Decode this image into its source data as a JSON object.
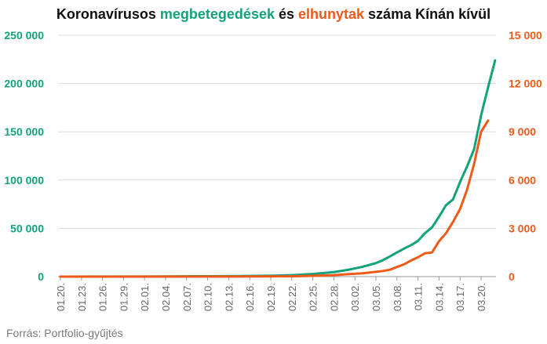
{
  "header": {
    "title_part1": "Koronavírusos ",
    "title_cases": "megbetegedések",
    "title_part2": " és ",
    "title_deaths": "elhunytak",
    "title_part3": " száma Kínán kívül"
  },
  "footer": {
    "source": "Forrás: Portfolio-gyűjtés"
  },
  "colors": {
    "cases": "#12a37a",
    "deaths": "#f05a19",
    "axis_text": "#666666",
    "grid": "#dcdcdc"
  },
  "chart_data": {
    "type": "line",
    "title": "Koronavírusos megbetegedések és elhunytak száma Kínán kívül",
    "x_ticks": [
      "01.20.",
      "01.23.",
      "01.26.",
      "01.29.",
      "02.01.",
      "02.04.",
      "02.07.",
      "02.10.",
      "02.13.",
      "02.16.",
      "02.19.",
      "02.22.",
      "02.25.",
      "02.28.",
      "03.02.",
      "03.05.",
      "03.08.",
      "03.11.",
      "03.14.",
      "03.17.",
      "03.20."
    ],
    "x_start": "2020-01-20",
    "x_end": "2020-03-21",
    "y_left": {
      "range": [
        0,
        250000
      ],
      "ticks": [
        0,
        50000,
        100000,
        150000,
        200000,
        250000
      ],
      "tick_labels": [
        "0",
        "50 000",
        "100 000",
        "150 000",
        "200 000",
        "250 000"
      ],
      "color": "#12a37a"
    },
    "y_right": {
      "range": [
        0,
        15000
      ],
      "ticks": [
        0,
        3000,
        6000,
        9000,
        12000,
        15000
      ],
      "tick_labels": [
        "0",
        "3 000",
        "6 000",
        "9 000",
        "12 000",
        "15 000"
      ],
      "color": "#f05a19"
    },
    "grid": true,
    "series": [
      {
        "axis": "left",
        "color": "#12a37a",
        "points": [
          [
            "2020-01-20",
            0
          ],
          [
            "2020-02-01",
            150
          ],
          [
            "2020-02-13",
            500
          ],
          [
            "2020-02-16",
            700
          ],
          [
            "2020-02-19",
            900
          ],
          [
            "2020-02-22",
            1500
          ],
          [
            "2020-02-25",
            2700
          ],
          [
            "2020-02-28",
            4700
          ],
          [
            "2020-03-01",
            7000
          ],
          [
            "2020-03-03",
            10000
          ],
          [
            "2020-03-05",
            14000
          ],
          [
            "2020-03-06",
            17000
          ],
          [
            "2020-03-07",
            21000
          ],
          [
            "2020-03-08",
            25000
          ],
          [
            "2020-03-09",
            29000
          ],
          [
            "2020-03-10",
            32500
          ],
          [
            "2020-03-11",
            37000
          ],
          [
            "2020-03-12",
            45000
          ],
          [
            "2020-03-13",
            51000
          ],
          [
            "2020-03-14",
            62000
          ],
          [
            "2020-03-15",
            74000
          ],
          [
            "2020-03-16",
            80000
          ],
          [
            "2020-03-17",
            98000
          ],
          [
            "2020-03-18",
            114000
          ],
          [
            "2020-03-19",
            132000
          ],
          [
            "2020-03-20",
            167000
          ],
          [
            "2020-03-21",
            196000
          ],
          [
            "2020-03-22",
            224000
          ]
        ]
      },
      {
        "axis": "right",
        "color": "#f05a19",
        "points": [
          [
            "2020-01-20",
            0
          ],
          [
            "2020-02-14",
            5
          ],
          [
            "2020-02-22",
            20
          ],
          [
            "2020-02-25",
            50
          ],
          [
            "2020-02-28",
            90
          ],
          [
            "2020-03-01",
            150
          ],
          [
            "2020-03-03",
            200
          ],
          [
            "2020-03-05",
            300
          ],
          [
            "2020-03-06",
            350
          ],
          [
            "2020-03-07",
            430
          ],
          [
            "2020-03-08",
            600
          ],
          [
            "2020-03-09",
            760
          ],
          [
            "2020-03-10",
            1000
          ],
          [
            "2020-03-11",
            1200
          ],
          [
            "2020-03-12",
            1450
          ],
          [
            "2020-03-13",
            1500
          ],
          [
            "2020-03-14",
            2200
          ],
          [
            "2020-03-15",
            2700
          ],
          [
            "2020-03-16",
            3400
          ],
          [
            "2020-03-17",
            4200
          ],
          [
            "2020-03-18",
            5400
          ],
          [
            "2020-03-19",
            7000
          ],
          [
            "2020-03-20",
            9000
          ],
          [
            "2020-03-21",
            9700
          ]
        ]
      }
    ]
  }
}
